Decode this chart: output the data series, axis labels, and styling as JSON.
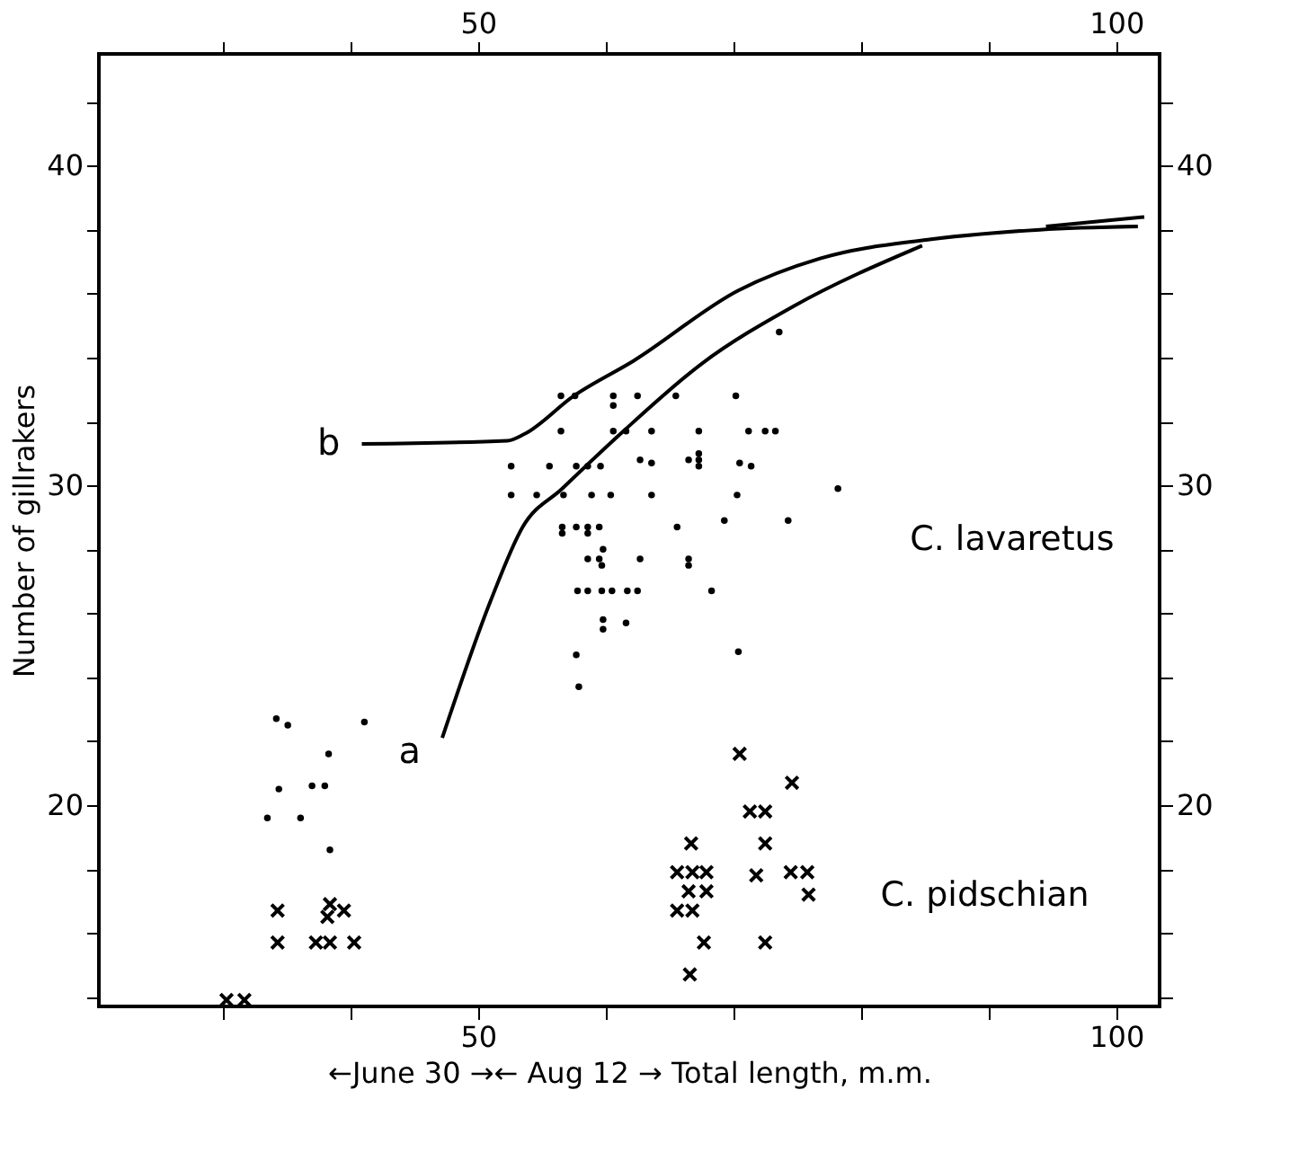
{
  "chart_data": {
    "type": "scatter",
    "xlabel": "←June 30 →← Aug 12 → Total length, m.m.",
    "ylabel": "Number of gillrakers",
    "xlim": [
      20.3,
      103.4
    ],
    "xticks": [
      {
        "value": 30,
        "label": null
      },
      {
        "value": 40,
        "label": null
      },
      50,
      {
        "value": 60,
        "label": null
      },
      {
        "value": 70,
        "label": null
      },
      {
        "value": 80,
        "label": null
      },
      {
        "value": 90,
        "label": null
      },
      100
    ],
    "x2lim": [
      20.3,
      103.4
    ],
    "x2ticks": [
      {
        "value": 30,
        "label": null
      },
      {
        "value": 40,
        "label": null
      },
      50,
      {
        "value": 60,
        "label": null
      },
      {
        "value": 70,
        "label": null
      },
      {
        "value": 80,
        "label": null
      },
      {
        "value": 90,
        "label": null
      },
      100
    ],
    "ylim": [
      13.7,
      43.5
    ],
    "yticks": [
      {
        "value": 14,
        "label": null
      },
      {
        "value": 16,
        "label": null
      },
      {
        "value": 18,
        "label": null
      },
      20,
      {
        "value": 22,
        "label": null
      },
      {
        "value": 24,
        "label": null
      },
      {
        "value": 26,
        "label": null
      },
      {
        "value": 28,
        "label": null
      },
      30,
      {
        "value": 32,
        "label": null
      },
      {
        "value": 34,
        "label": null
      },
      {
        "value": 36,
        "label": null
      },
      {
        "value": 38,
        "label": null
      },
      40,
      {
        "value": 42,
        "label": null
      }
    ],
    "y2lim": [
      13.7,
      43.5
    ],
    "y2ticks": [
      {
        "value": 14,
        "label": null
      },
      {
        "value": 16,
        "label": null
      },
      {
        "value": 18,
        "label": null
      },
      20,
      {
        "value": 22,
        "label": null
      },
      {
        "value": 24,
        "label": null
      },
      {
        "value": 26,
        "label": null
      },
      {
        "value": 28,
        "label": null
      },
      30,
      {
        "value": 32,
        "label": null
      },
      {
        "value": 34,
        "label": null
      },
      {
        "value": 36,
        "label": null
      },
      {
        "value": 38,
        "label": null
      },
      40,
      {
        "value": 42,
        "label": null
      }
    ],
    "grid": false,
    "series": [
      {
        "name": "C. lavaretus",
        "marker": "circle",
        "color": "#000000",
        "x": [
          34.2,
          35.1,
          41.1,
          38.3,
          34.4,
          37.0,
          38.0,
          33.5,
          36.1,
          38.4,
          56.5,
          57.6,
          60.6,
          60.6,
          62.5,
          65.5,
          70.2,
          56.5,
          60.6,
          61.6,
          63.6,
          67.3,
          71.2,
          72.5,
          73.3,
          67.3,
          67.3,
          67.3,
          62.7,
          63.6,
          66.5,
          70.5,
          71.4,
          52.6,
          55.6,
          57.7,
          58.6,
          59.6,
          52.6,
          54.6,
          56.7,
          58.9,
          60.4,
          63.6,
          70.3,
          69.3,
          74.3,
          65.6,
          56.6,
          57.7,
          58.6,
          59.5,
          56.6,
          58.6,
          59.8,
          58.6,
          59.5,
          62.7,
          66.5,
          59.7,
          66.5,
          57.8,
          58.6,
          59.7,
          60.5,
          61.7,
          62.5,
          68.3,
          59.8,
          59.8,
          61.6,
          57.7,
          70.4,
          57.9,
          78.2,
          73.6
        ],
        "values": [
          22.7,
          22.5,
          22.6,
          21.6,
          20.5,
          20.6,
          20.6,
          19.6,
          19.6,
          18.6,
          32.8,
          32.8,
          32.8,
          32.5,
          32.8,
          32.8,
          32.8,
          31.7,
          31.7,
          31.7,
          31.7,
          31.7,
          31.7,
          31.7,
          31.7,
          31.0,
          30.8,
          30.6,
          30.8,
          30.7,
          30.8,
          30.7,
          30.6,
          30.6,
          30.6,
          30.6,
          30.6,
          30.6,
          29.7,
          29.7,
          29.7,
          29.7,
          29.7,
          29.7,
          29.7,
          28.9,
          28.9,
          28.7,
          28.7,
          28.7,
          28.7,
          28.7,
          28.5,
          28.5,
          28.0,
          27.7,
          27.7,
          27.7,
          27.7,
          27.5,
          27.5,
          26.7,
          26.7,
          26.7,
          26.7,
          26.7,
          26.7,
          26.7,
          25.8,
          25.5,
          25.7,
          24.7,
          24.8,
          23.7,
          29.9,
          34.8
        ]
      },
      {
        "name": "C. pidschian",
        "marker": "cross",
        "color": "#000000",
        "x": [
          34.3,
          38.4,
          38.2,
          39.5,
          34.3,
          37.3,
          38.4,
          40.3,
          30.3,
          31.7,
          70.5,
          74.6,
          71.3,
          72.5,
          66.7,
          72.5,
          65.6,
          66.8,
          67.9,
          71.8,
          74.5,
          75.8,
          66.5,
          67.9,
          75.9,
          65.6,
          66.8,
          67.7,
          72.5,
          66.6
        ],
        "values": [
          16.7,
          16.9,
          16.5,
          16.7,
          15.7,
          15.7,
          15.7,
          15.7,
          13.9,
          13.9,
          21.6,
          20.7,
          19.8,
          19.8,
          18.8,
          18.8,
          17.9,
          17.9,
          17.9,
          17.8,
          17.9,
          17.9,
          17.3,
          17.3,
          17.2,
          16.7,
          16.7,
          15.7,
          15.7,
          14.7
        ]
      },
      {
        "name": "a",
        "type": "line",
        "color": "#000000",
        "x": [
          47.2,
          51.0,
          53.5,
          56.6,
          61.4,
          67.5,
          74.7,
          84.8
        ],
        "values": [
          22.1,
          26.4,
          28.7,
          29.9,
          31.7,
          33.8,
          35.6,
          37.5
        ]
      },
      {
        "name": "b",
        "type": "line",
        "color": "#000000",
        "x": [
          40.9,
          52.3,
          53.6,
          57.5,
          62.2,
          70.4,
          76.8,
          85.5,
          94.0,
          101.7
        ],
        "values": [
          31.3,
          31.4,
          31.6,
          32.8,
          33.9,
          36.1,
          37.1,
          37.7,
          38.0,
          38.1
        ]
      },
      {
        "type": "line",
        "color": "#000000",
        "axis": "y2",
        "x": [
          94.5,
          102.2
        ],
        "values": [
          38.1,
          38.4
        ]
      }
    ]
  }
}
